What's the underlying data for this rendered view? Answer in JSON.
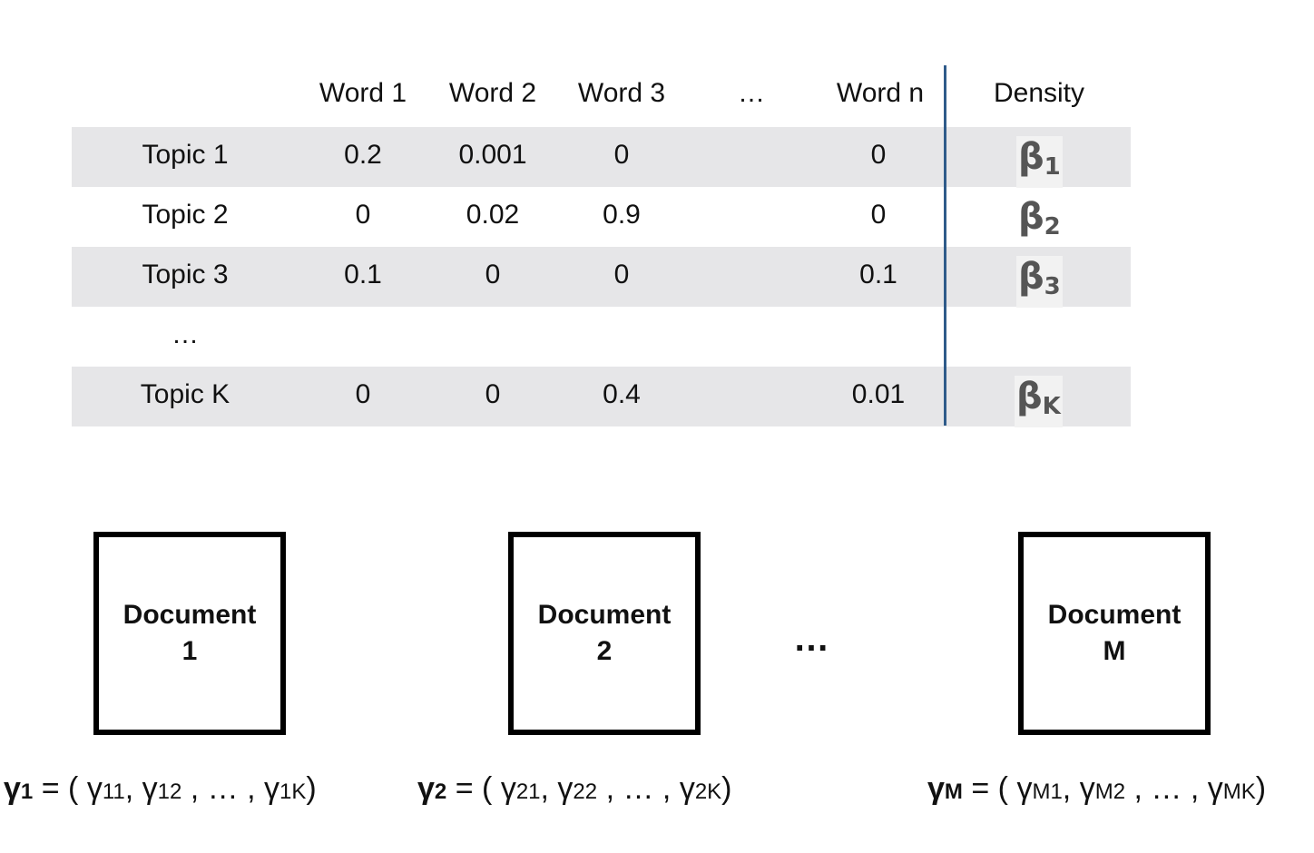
{
  "table": {
    "headers": [
      "Word 1",
      "Word 2",
      "Word 3",
      "…",
      "Word n",
      "Density"
    ],
    "rows": [
      {
        "label": "Topic 1",
        "values": [
          "0.2",
          "0.001",
          "0",
          "0"
        ],
        "beta": {
          "symbol": "β",
          "sub": "1"
        }
      },
      {
        "label": "Topic 2",
        "values": [
          "0",
          "0.02",
          "0.9",
          "0"
        ],
        "beta": {
          "symbol": "β",
          "sub": "2"
        }
      },
      {
        "label": "Topic 3",
        "values": [
          "0.1",
          "0",
          "0",
          "0.1"
        ],
        "beta": {
          "symbol": "β",
          "sub": "3"
        }
      },
      {
        "label": "…"
      },
      {
        "label": "Topic K",
        "values": [
          "0",
          "0",
          "0.4",
          "0.01"
        ],
        "beta": {
          "symbol": "β",
          "sub": "K"
        }
      }
    ]
  },
  "documents": [
    {
      "line1": "Document",
      "line2": "1"
    },
    {
      "line1": "Document",
      "line2": "2"
    },
    {
      "line1": "Document",
      "line2": "M"
    }
  ],
  "docs_ellipsis": "…",
  "gammas": [
    {
      "sym": "γ",
      "sub": "1",
      "eq": " = ( ",
      "t1": "γ",
      "s1": "11",
      "sep1": ", ",
      "t2": "γ",
      "s2": "12",
      "mid": " , … , ",
      "t3": "γ",
      "s3": "1K",
      "close": ")"
    },
    {
      "sym": "γ",
      "sub": "2",
      "eq": " = ( ",
      "t1": "γ",
      "s1": "21",
      "sep1": ", ",
      "t2": "γ",
      "s2": "22",
      "mid": " , … , ",
      "t3": "γ",
      "s3": "2K",
      "close": ")"
    },
    {
      "sym": "γ",
      "sub": "M",
      "eq": " = ( ",
      "t1": "γ",
      "s1": "M1",
      "sep1": ", ",
      "t2": "γ",
      "s2": "M2",
      "mid": " , … , ",
      "t3": "γ",
      "s3": "MK",
      "close": ")"
    }
  ],
  "colors": {
    "row_shade": "#e6e6e8",
    "divider": "#2f5b8a",
    "beta": "#555555"
  }
}
